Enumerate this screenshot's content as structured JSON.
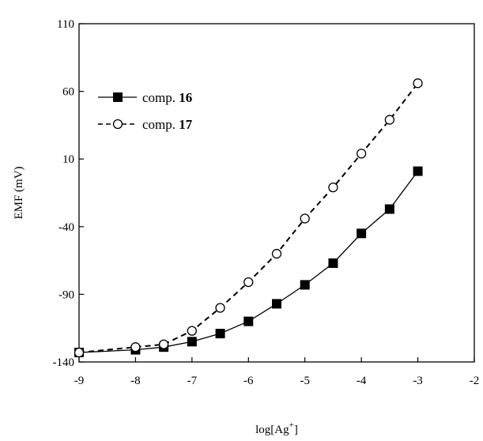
{
  "chart_data": {
    "type": "line",
    "xlabel": "log[Ag",
    "xlabel_sup": "+",
    "xlabel_close": "]",
    "ylabel": "EMF (mV)",
    "xlim": [
      -9,
      -2
    ],
    "ylim": [
      -140,
      110
    ],
    "xticks": [
      "-9",
      "-8",
      "-7",
      "-6",
      "-5",
      "-4",
      "-3",
      "-2"
    ],
    "xtick_values": [
      -9,
      -8,
      -7,
      -6,
      -5,
      -4,
      -3,
      -2
    ],
    "yticks": [
      "110",
      "60",
      "10",
      "-40",
      "-90",
      "-140"
    ],
    "ytick_values": [
      110,
      60,
      10,
      -40,
      -90,
      -140
    ],
    "grid": false,
    "legend_position": "top-left",
    "series": [
      {
        "name": "comp. 16",
        "legend_text": "comp.",
        "legend_num": "16",
        "marker": "filled-square",
        "line": "solid",
        "x": [
          -9,
          -8,
          -7.5,
          -7,
          -6.5,
          -6,
          -5.5,
          -5,
          -4.5,
          -4,
          -3.5,
          -3
        ],
        "y": [
          -133,
          -131,
          -129,
          -125,
          -119,
          -110,
          -97,
          -83,
          -67,
          -45,
          -27,
          1
        ]
      },
      {
        "name": "comp. 17",
        "legend_text": "comp.",
        "legend_num": "17",
        "marker": "open-circle",
        "line": "dashed",
        "x": [
          -9,
          -8,
          -7.5,
          -7,
          -6.5,
          -6,
          -5.5,
          -5,
          -4.5,
          -4,
          -3.5,
          -3
        ],
        "y": [
          -133,
          -129,
          -127,
          -117,
          -100,
          -81,
          -60,
          -34,
          -11,
          14,
          39,
          66
        ]
      }
    ]
  }
}
